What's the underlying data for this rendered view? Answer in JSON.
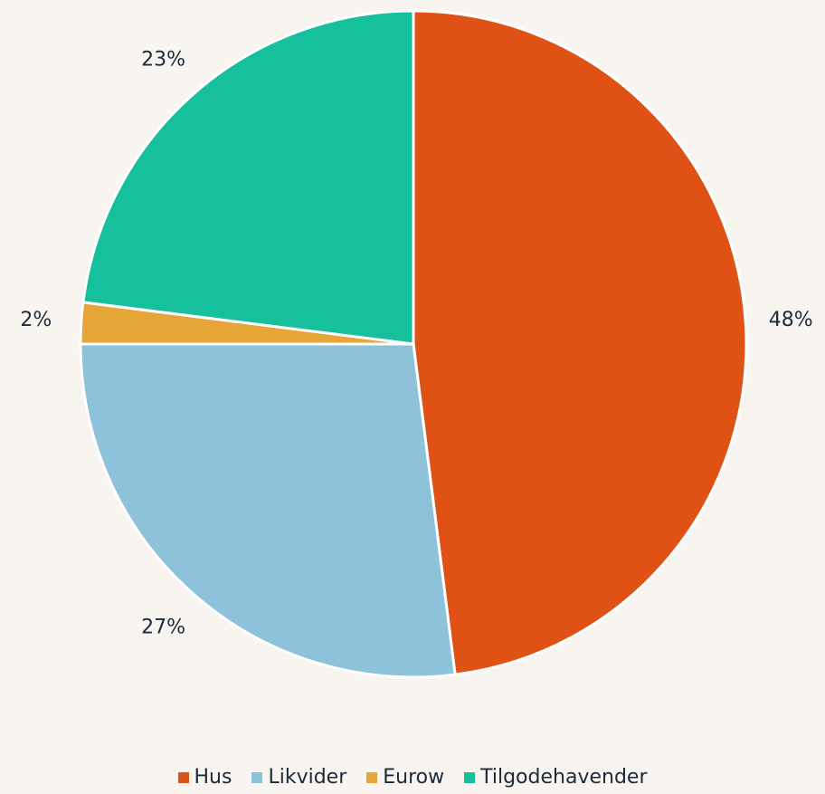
{
  "chart_data": {
    "type": "pie",
    "categories": [
      "Hus",
      "Likvider",
      "Eurow",
      "Tilgodehavender"
    ],
    "values": [
      48,
      27,
      2,
      23
    ],
    "value_labels": [
      "48%",
      "27%",
      "2%",
      "23%"
    ],
    "colors": [
      "#e05115",
      "#8ec1da",
      "#e5a537",
      "#16c09c"
    ],
    "legend": "bottom"
  }
}
